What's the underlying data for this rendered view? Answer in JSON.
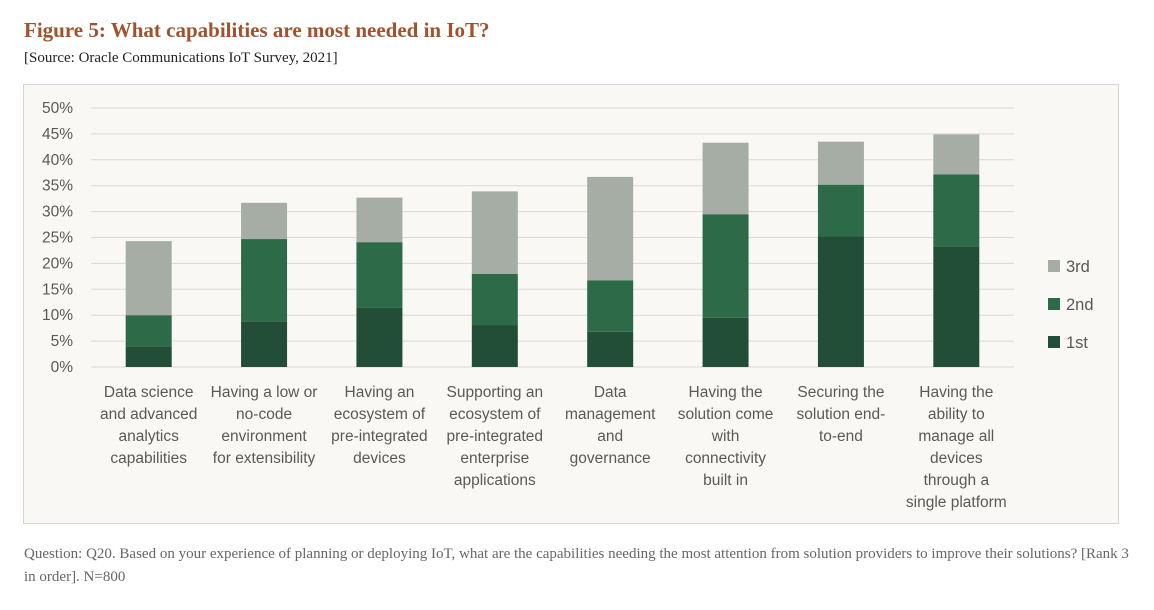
{
  "figure": {
    "title": "Figure 5: What capabilities are most needed in IoT?",
    "source": "[Source: Oracle Communications IoT Survey, 2021]",
    "question": "Question: Q20. Based on your experience of planning or deploying IoT, what are the capabilities needing the most attention from solution providers to improve their solutions? [Rank 3 in order]. N=800"
  },
  "colors": {
    "first": "#224e37",
    "second": "#2c6a48",
    "third": "#a5ada5",
    "grid": "#d9d9d9",
    "axis_text": "#595959"
  },
  "chart_data": {
    "type": "bar",
    "stacked": true,
    "categories": [
      [
        "Data science",
        "and advanced",
        "analytics",
        "capabilities"
      ],
      [
        "Having a low or",
        "no-code",
        "environment",
        "for extensibility"
      ],
      [
        "Having an",
        "ecosystem of",
        "pre-integrated",
        "devices"
      ],
      [
        "Supporting an",
        "ecosystem of",
        "pre-integrated",
        "enterprise",
        "applications"
      ],
      [
        "Data",
        "management",
        "and",
        "governance"
      ],
      [
        "Having the",
        "solution come",
        "with",
        "connectivity",
        "built in"
      ],
      [
        "Securing the",
        "solution end-",
        "to-end"
      ],
      [
        "Having the",
        "ability to",
        "manage all",
        "devices",
        "through a",
        "single platform"
      ]
    ],
    "series": [
      {
        "name": "1st",
        "values": [
          4,
          8.7,
          11.4,
          8.1,
          6.8,
          9.5,
          25.2,
          23.3
        ]
      },
      {
        "name": "2nd",
        "values": [
          6,
          16,
          12.7,
          9.9,
          9.9,
          20,
          10,
          13.9
        ]
      },
      {
        "name": "3rd",
        "values": [
          14.3,
          7,
          8.6,
          15.9,
          20,
          13.8,
          8.3,
          7.7
        ]
      }
    ],
    "yticks": [
      "0%",
      "5%",
      "10%",
      "15%",
      "20%",
      "25%",
      "30%",
      "35%",
      "40%",
      "45%",
      "50%"
    ],
    "ylim": [
      0,
      50
    ],
    "grid": true,
    "legend": "right"
  }
}
